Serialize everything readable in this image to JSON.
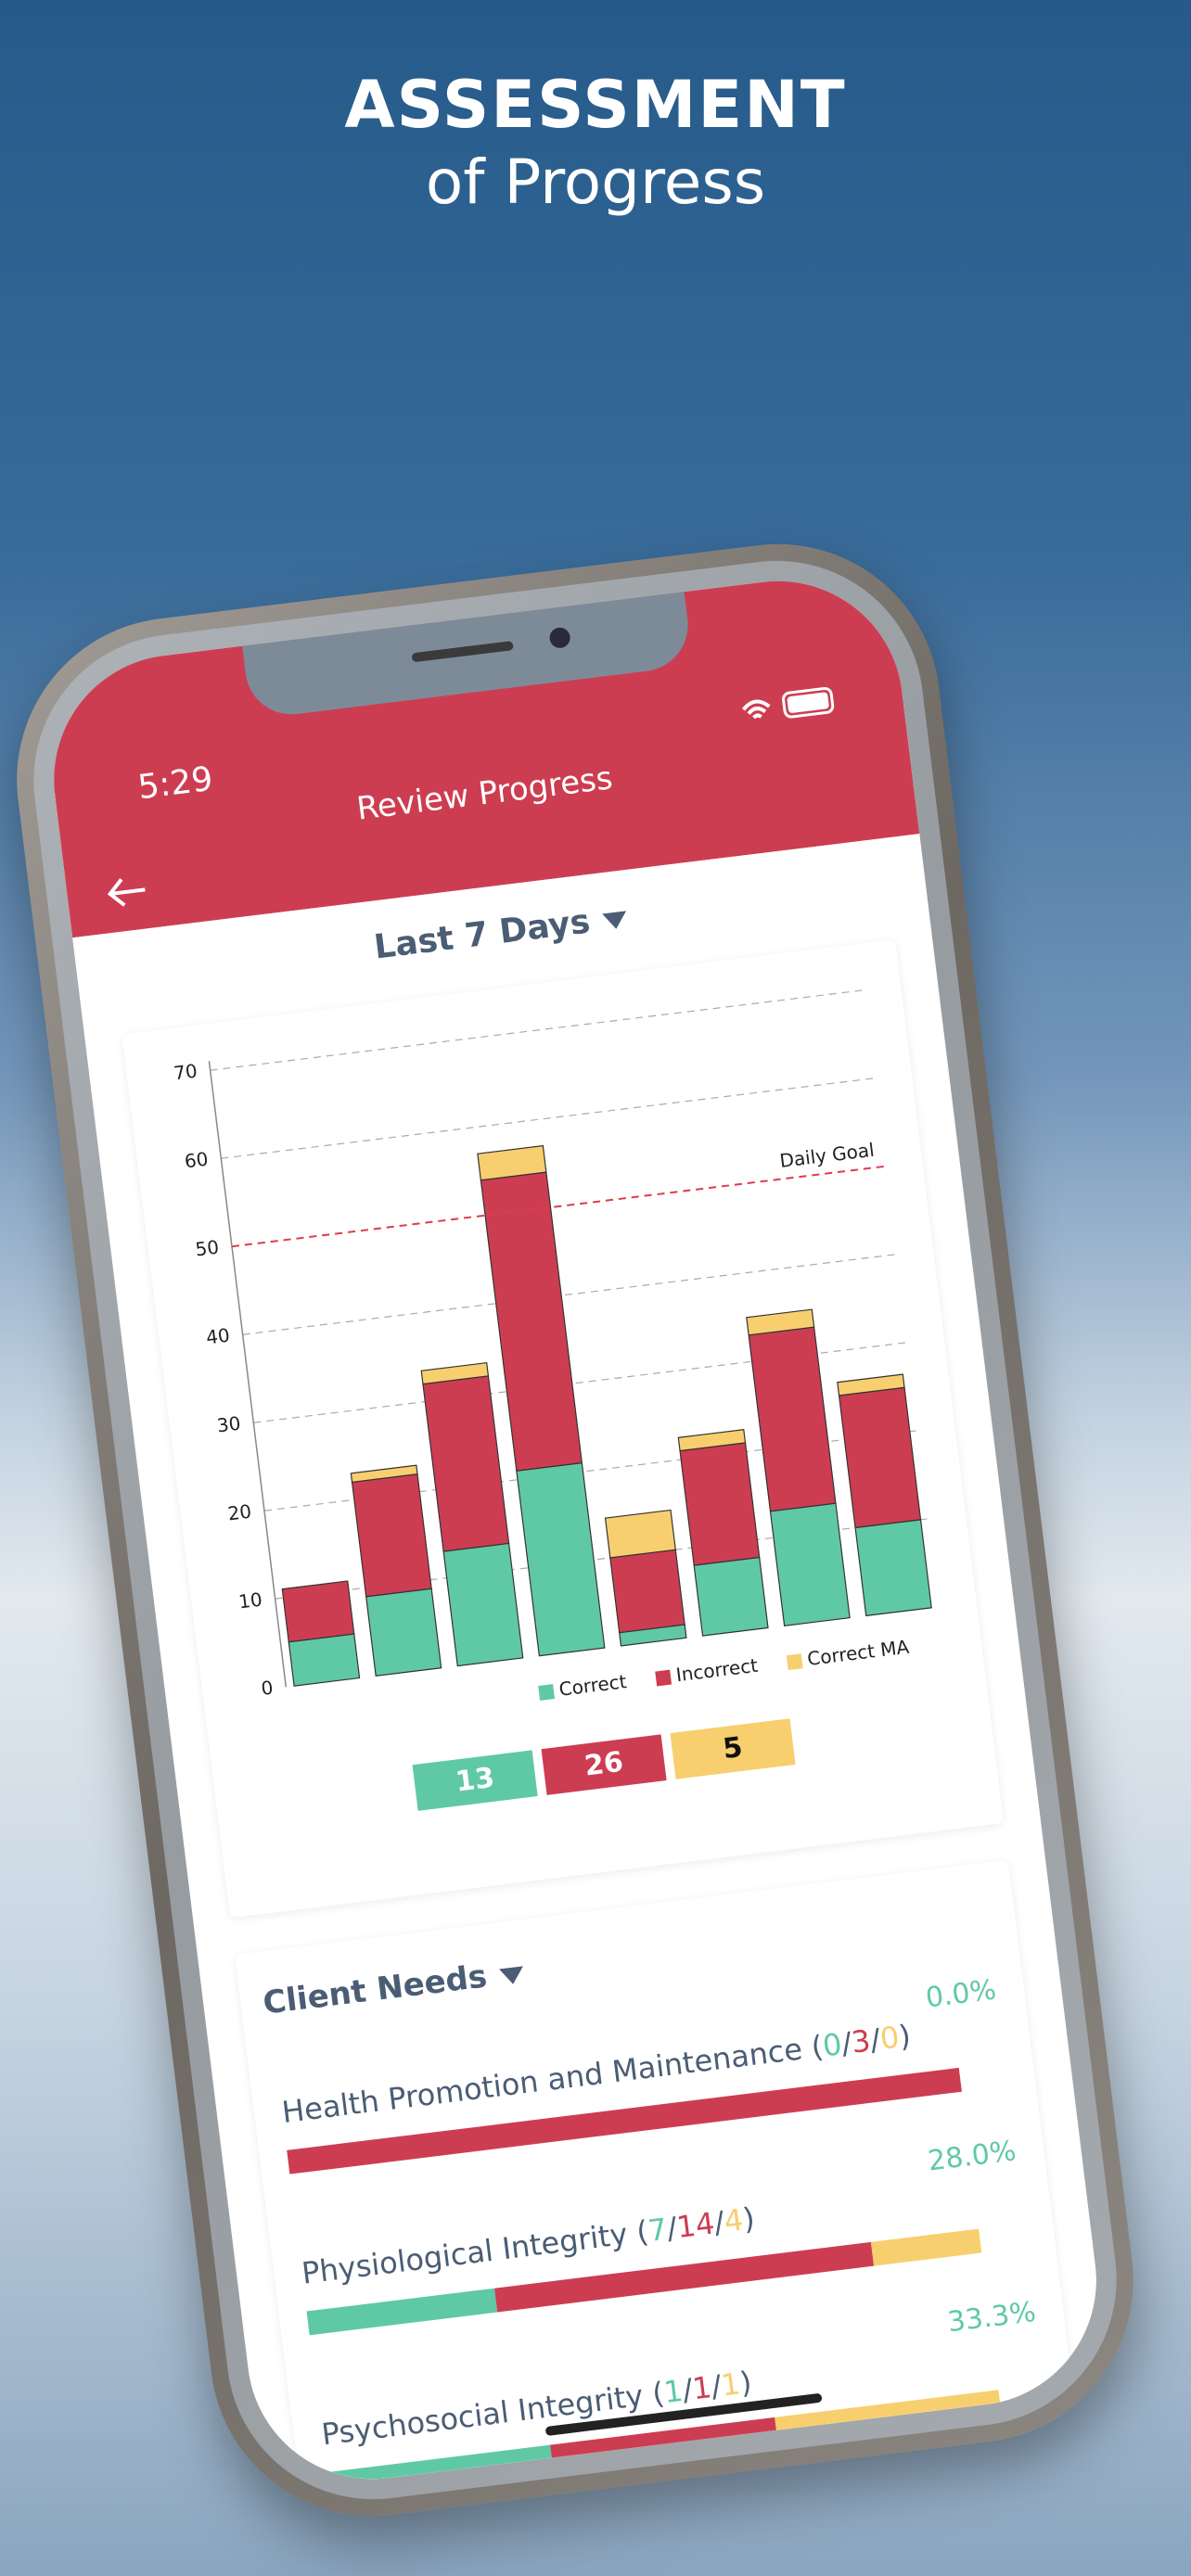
{
  "header": {
    "title": "ASSESSMENT",
    "subtitle": "of Progress"
  },
  "status_bar": {
    "time": "5:29"
  },
  "nav": {
    "title": "Review Progress"
  },
  "range_selector": "Last 7 Days",
  "chart_data": {
    "type": "bar",
    "stacked": true,
    "categories": [
      null,
      null,
      null,
      null,
      null,
      null,
      null,
      null
    ],
    "series": [
      {
        "name": "Correct",
        "color": "#5fc9a5",
        "values": [
          5,
          9,
          13,
          21,
          1.5,
          8,
          13,
          10
        ]
      },
      {
        "name": "Incorrect",
        "color": "#cd3d52",
        "values": [
          6,
          13,
          19,
          33,
          8.5,
          13,
          20,
          15
        ]
      },
      {
        "name": "Correct MA",
        "color": "#f7cf6e",
        "values": [
          0,
          1,
          1.5,
          3,
          4.5,
          1.5,
          2,
          1.5
        ]
      }
    ],
    "ylim": [
      0,
      70
    ],
    "yticks": [
      0,
      10,
      20,
      30,
      40,
      50,
      60,
      70
    ],
    "grid": true,
    "goal_line": {
      "label": "Daily Goal",
      "value": 50,
      "color": "#e03a4e"
    },
    "legend": "bottom-right"
  },
  "totals": [
    {
      "value": 13,
      "color": "#5fc9a5",
      "text_color": "#ffffff"
    },
    {
      "value": 26,
      "color": "#cd3d52",
      "text_color": "#ffffff"
    },
    {
      "value": 5,
      "color": "#f7cf6e",
      "text_color": "#111111"
    }
  ],
  "client_needs": {
    "title": "Client Needs",
    "items": [
      {
        "name": "Health Promotion and Maintenance",
        "counts": [
          0,
          3,
          0
        ],
        "percent": "0.0%"
      },
      {
        "name": "Physiological Integrity",
        "counts": [
          7,
          14,
          4
        ],
        "percent": "28.0%"
      },
      {
        "name": "Psychosocial Integrity",
        "counts": [
          1,
          1,
          1
        ],
        "percent": "33.3%"
      }
    ]
  }
}
